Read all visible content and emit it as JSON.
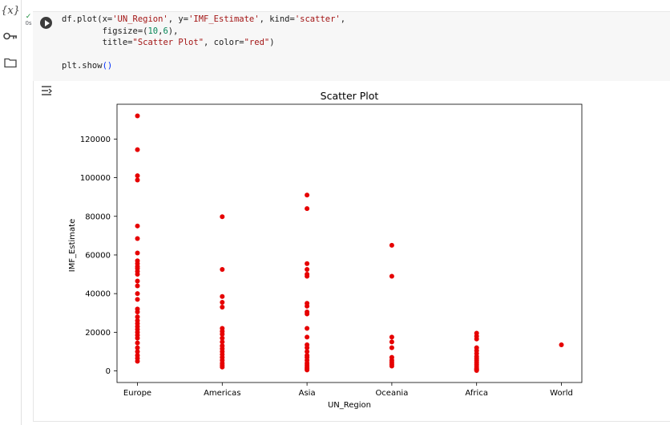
{
  "sidebar": {
    "icons": [
      "variables-icon",
      "key-icon",
      "folder-icon"
    ],
    "variables_label": "{x}"
  },
  "cell": {
    "status_time": "0s",
    "code_lines": [
      "df.plot(x='UN_Region', y='IMF_Estimate', kind='scatter',",
      "        figsize=(10,6),",
      "        title=\"Scatter Plot\", color=\"red\")",
      "",
      "plt.show()"
    ]
  },
  "output": {
    "icon": "output-toggle-icon"
  },
  "chart_data": {
    "type": "scatter",
    "title": "Scatter Plot",
    "xlabel": "UN_Region",
    "ylabel": "IMF_Estimate",
    "categories": [
      "Europe",
      "Americas",
      "Asia",
      "Oceania",
      "Africa",
      "World"
    ],
    "yticks": [
      "0",
      "20000",
      "40000",
      "60000",
      "80000",
      "100000",
      "120000"
    ],
    "ytick_values": [
      0,
      20000,
      40000,
      60000,
      80000,
      100000,
      120000
    ],
    "ylim": [
      -6000,
      138000
    ],
    "color": "#e60000",
    "grid": false,
    "points": {
      "Europe": [
        132000,
        114500,
        101000,
        98800,
        75000,
        68500,
        61000,
        57000,
        55500,
        54000,
        53000,
        51500,
        50000,
        46500,
        44000,
        40000,
        37000,
        32000,
        30500,
        28000,
        26000,
        24500,
        23000,
        21500,
        20000,
        18500,
        17000,
        14500,
        12000,
        10000,
        8000,
        6500,
        5000
      ],
      "Americas": [
        79800,
        52500,
        38500,
        35500,
        33000,
        22000,
        20500,
        19000,
        17000,
        15000,
        13000,
        11500,
        10000,
        8500,
        7000,
        5500,
        4000,
        3000,
        2000
      ],
      "Asia": [
        91000,
        84000,
        55500,
        52500,
        50000,
        49000,
        35000,
        33500,
        30500,
        29500,
        22000,
        17500,
        13500,
        12000,
        10000,
        8000,
        7000,
        5500,
        4000,
        3000,
        2000,
        1200,
        500
      ],
      "Oceania": [
        65000,
        49000,
        17500,
        15000,
        12000,
        7000,
        5500,
        4500,
        3500,
        2500
      ],
      "Africa": [
        19500,
        18000,
        16500,
        12000,
        10500,
        9000,
        7500,
        6500,
        5500,
        4500,
        3500,
        2500,
        1500,
        1000,
        600,
        200
      ],
      "World": [
        13500
      ]
    }
  }
}
